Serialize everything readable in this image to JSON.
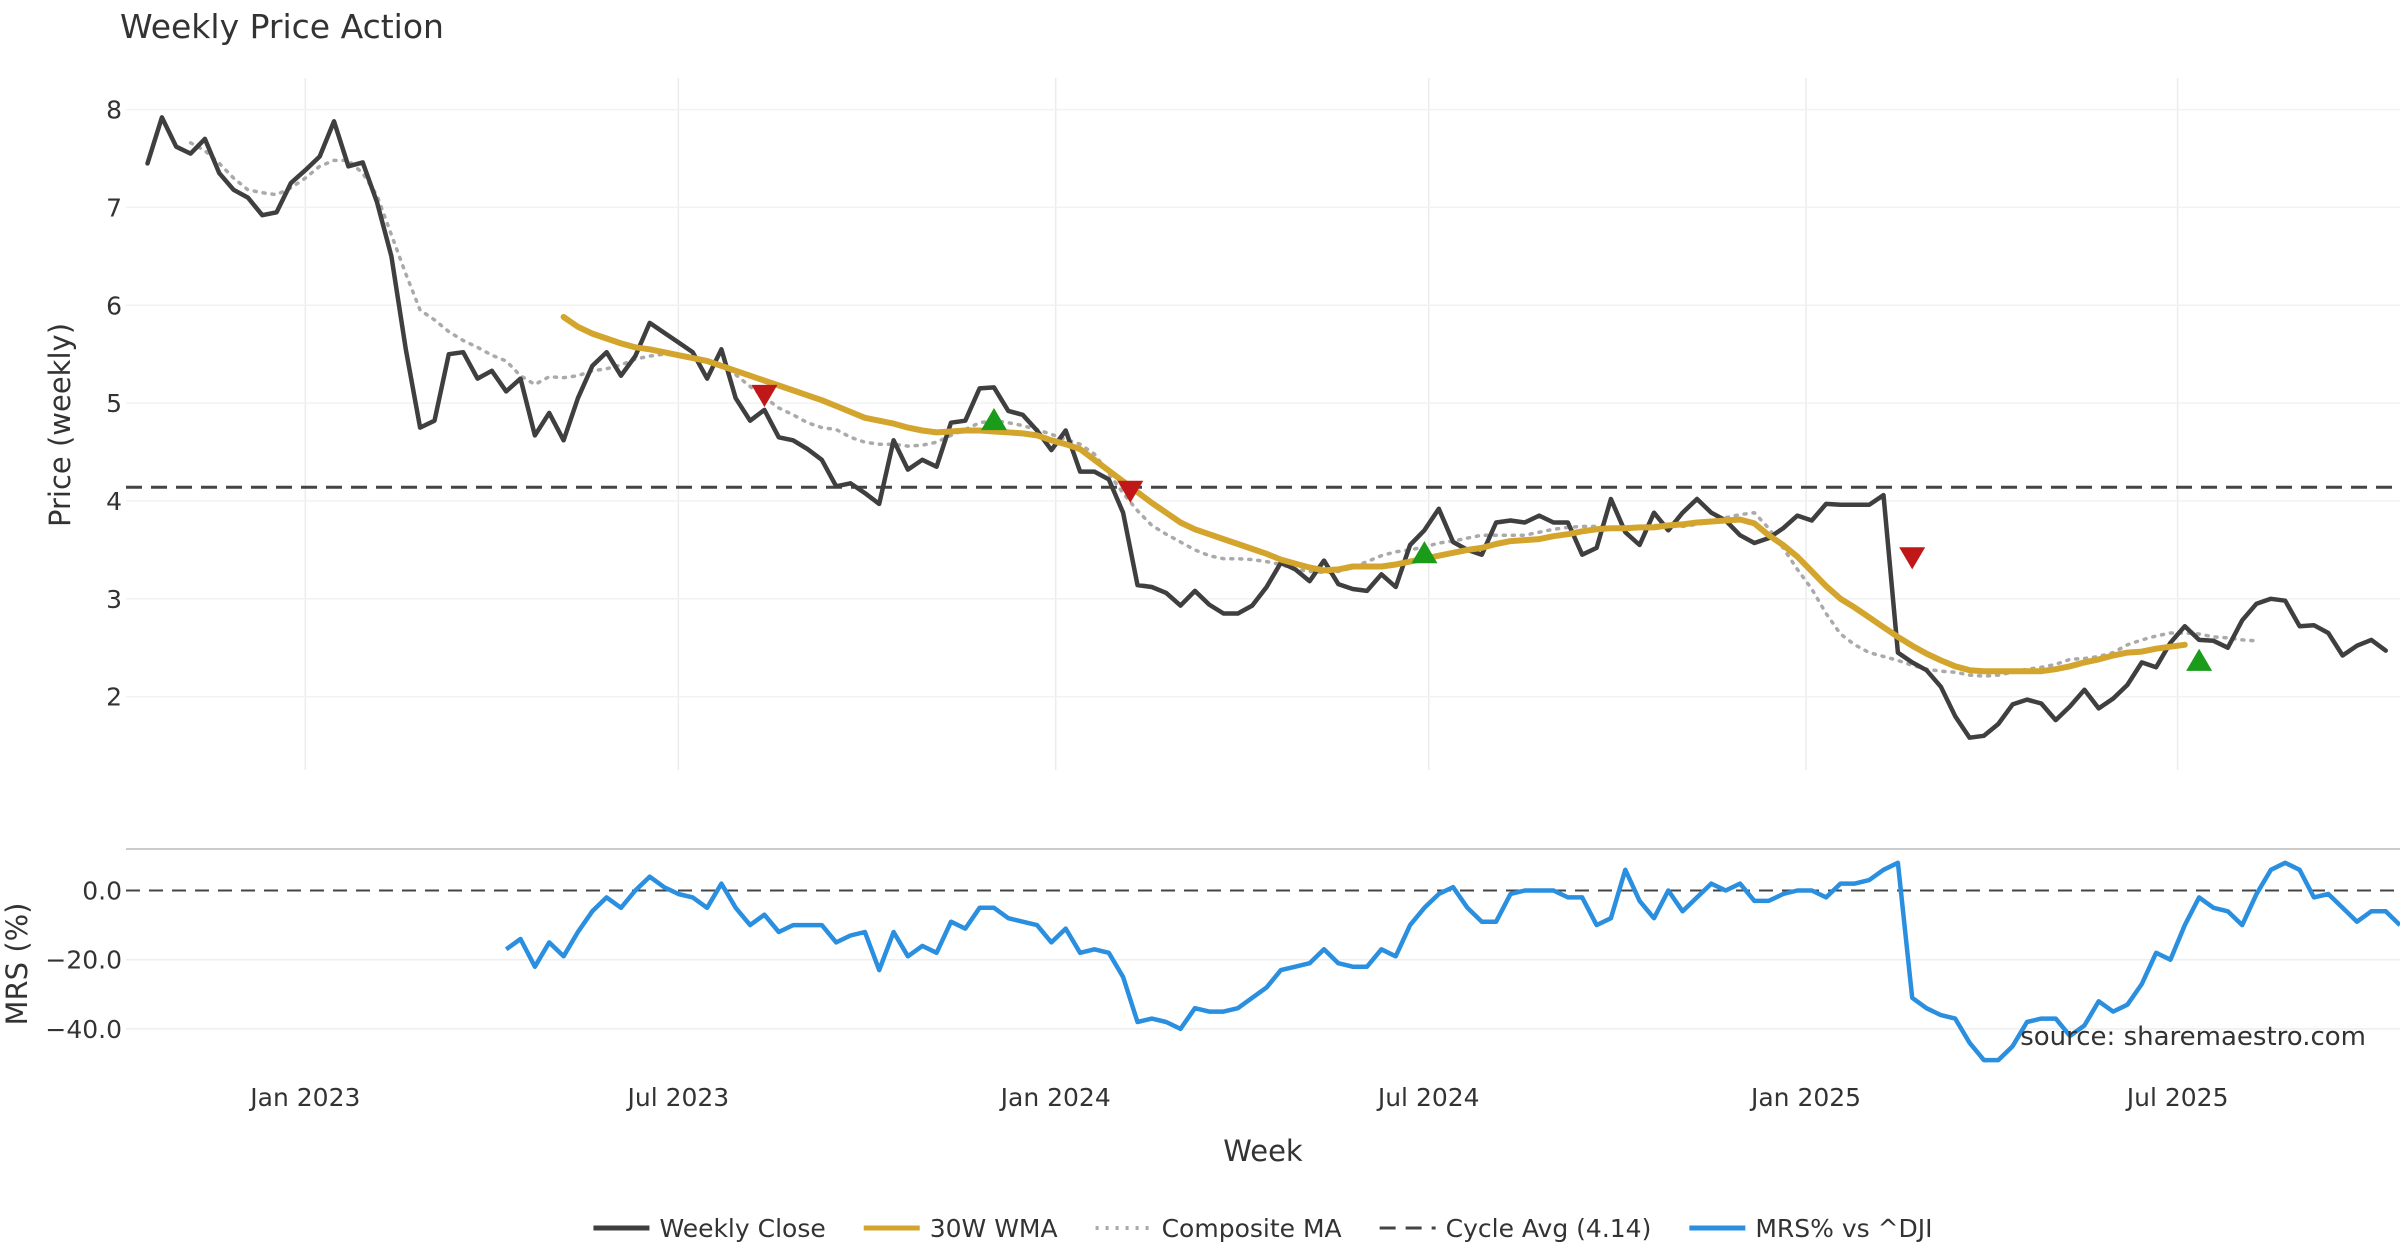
{
  "chart_data": [
    {
      "type": "line",
      "title": "Weekly Price Action",
      "xlabel": "Week",
      "ylabel": "Price (weekly)",
      "ylim": [
        1.25,
        8.2
      ],
      "yticks": [
        2,
        3,
        4,
        5,
        6,
        7,
        8
      ],
      "xticks": [
        {
          "label": "Jan 2023",
          "week": 11
        },
        {
          "label": "Jul 2023",
          "week": 37
        },
        {
          "label": "Jan 2024",
          "week": 63.3
        },
        {
          "label": "Jul 2024",
          "week": 89.3
        },
        {
          "label": "Jan 2025",
          "week": 115.6
        },
        {
          "label": "Jul 2025",
          "week": 141.5
        }
      ],
      "xlim": [
        -1.5,
        157
      ],
      "grid": true,
      "series": [
        {
          "name": "Weekly Close",
          "color": "#3f3f3f",
          "start_week": 0,
          "values": [
            7.45,
            7.92,
            7.62,
            7.55,
            7.7,
            7.35,
            7.18,
            7.1,
            6.92,
            6.95,
            7.25,
            7.38,
            7.52,
            7.88,
            7.42,
            7.46,
            7.05,
            6.5,
            5.55,
            4.75,
            4.82,
            5.5,
            5.52,
            5.25,
            5.33,
            5.12,
            5.25,
            4.67,
            4.9,
            4.62,
            5.05,
            5.38,
            5.52,
            5.28,
            5.48,
            5.82,
            5.72,
            5.62,
            5.52,
            5.25,
            5.55,
            5.05,
            4.82,
            4.93,
            4.65,
            4.62,
            4.53,
            4.42,
            4.15,
            4.18,
            4.08,
            3.97,
            4.62,
            4.32,
            4.42,
            4.35,
            4.8,
            4.82,
            5.15,
            5.16,
            4.92,
            4.88,
            4.72,
            4.52,
            4.72,
            4.3,
            4.3,
            4.22,
            3.88,
            3.14,
            3.12,
            3.06,
            2.93,
            3.08,
            2.94,
            2.85,
            2.85,
            2.93,
            3.12,
            3.37,
            3.3,
            3.18,
            3.39,
            3.15,
            3.1,
            3.08,
            3.25,
            3.12,
            3.55,
            3.7,
            3.92,
            3.58,
            3.5,
            3.45,
            3.78,
            3.8,
            3.78,
            3.85,
            3.78,
            3.78,
            3.45,
            3.52,
            4.02,
            3.68,
            3.55,
            3.88,
            3.7,
            3.88,
            4.02,
            3.88,
            3.8,
            3.65,
            3.57,
            3.62,
            3.72,
            3.85,
            3.8,
            3.97,
            3.96,
            3.96,
            3.96,
            4.06,
            2.45,
            2.35,
            2.27,
            2.1,
            1.8,
            1.58,
            1.6,
            1.72,
            1.92,
            1.97,
            1.93,
            1.76,
            1.9,
            2.07,
            1.88,
            1.98,
            2.12,
            2.35,
            2.3,
            2.55,
            2.72,
            2.58,
            2.57,
            2.5,
            2.78,
            2.95,
            3.0,
            2.98,
            2.72,
            2.73,
            2.65,
            2.42,
            2.52,
            2.58,
            2.47
          ]
        },
        {
          "name": "30W WMA",
          "color": "#d4a52c",
          "start_week": 29,
          "values": [
            5.88,
            5.78,
            5.71,
            5.66,
            5.61,
            5.57,
            5.55,
            5.52,
            5.49,
            5.46,
            5.43,
            5.38,
            5.33,
            5.28,
            5.23,
            5.18,
            5.13,
            5.08,
            5.03,
            4.97,
            4.91,
            4.85,
            4.82,
            4.79,
            4.75,
            4.72,
            4.7,
            4.71,
            4.72,
            4.72,
            4.71,
            4.7,
            4.69,
            4.67,
            4.62,
            4.58,
            4.53,
            4.42,
            4.31,
            4.2,
            4.09,
            3.98,
            3.88,
            3.78,
            3.71,
            3.66,
            3.61,
            3.56,
            3.51,
            3.46,
            3.4,
            3.36,
            3.32,
            3.29,
            3.3,
            3.33,
            3.33,
            3.33,
            3.35,
            3.38,
            3.41,
            3.44,
            3.47,
            3.5,
            3.52,
            3.56,
            3.59,
            3.6,
            3.61,
            3.64,
            3.66,
            3.69,
            3.71,
            3.72,
            3.72,
            3.73,
            3.73,
            3.75,
            3.76,
            3.78,
            3.79,
            3.8,
            3.81,
            3.77,
            3.65,
            3.55,
            3.43,
            3.28,
            3.13,
            3.0,
            2.91,
            2.81,
            2.71,
            2.61,
            2.52,
            2.44,
            2.37,
            2.31,
            2.27,
            2.26,
            2.26,
            2.26,
            2.26,
            2.26,
            2.28,
            2.31,
            2.35,
            2.38,
            2.42,
            2.45,
            2.46,
            2.49,
            2.51,
            2.53
          ]
        },
        {
          "name": "Composite MA",
          "color": "#aaaaaa",
          "start_week": 3,
          "values": [
            7.66,
            7.58,
            7.45,
            7.3,
            7.18,
            7.15,
            7.13,
            7.2,
            7.3,
            7.42,
            7.48,
            7.48,
            7.35,
            7.12,
            6.72,
            6.32,
            5.95,
            5.85,
            5.73,
            5.64,
            5.57,
            5.49,
            5.43,
            5.28,
            5.19,
            5.27,
            5.26,
            5.28,
            5.33,
            5.35,
            5.39,
            5.45,
            5.48,
            5.5,
            5.49,
            5.47,
            5.44,
            5.38,
            5.29,
            5.17,
            5.06,
            4.95,
            4.88,
            4.8,
            4.75,
            4.73,
            4.65,
            4.6,
            4.58,
            4.58,
            4.56,
            4.57,
            4.6,
            4.67,
            4.73,
            4.8,
            4.82,
            4.8,
            4.77,
            4.73,
            4.68,
            4.63,
            4.58,
            4.48,
            4.28,
            4.08,
            3.9,
            3.75,
            3.66,
            3.58,
            3.5,
            3.44,
            3.41,
            3.41,
            3.4,
            3.38,
            3.35,
            3.3,
            3.28,
            3.27,
            3.28,
            3.32,
            3.38,
            3.44,
            3.48,
            3.5,
            3.53,
            3.57,
            3.59,
            3.62,
            3.65,
            3.65,
            3.65,
            3.65,
            3.68,
            3.71,
            3.73,
            3.74,
            3.74,
            3.73,
            3.73,
            3.74,
            3.75,
            3.74,
            3.74,
            3.76,
            3.79,
            3.83,
            3.86,
            3.88,
            3.72,
            3.52,
            3.3,
            3.1,
            2.85,
            2.64,
            2.53,
            2.45,
            2.41,
            2.37,
            2.32,
            2.28,
            2.26,
            2.25,
            2.22,
            2.21,
            2.22,
            2.25,
            2.28,
            2.3,
            2.33,
            2.38,
            2.39,
            2.41,
            2.45,
            2.53,
            2.58,
            2.62,
            2.65,
            2.65,
            2.64,
            2.61,
            2.6,
            2.58,
            2.57
          ]
        }
      ],
      "reference_line": {
        "name": "Cycle Avg (4.14)",
        "value": 4.14,
        "color": "#444444"
      },
      "markers": [
        {
          "kind": "sell",
          "week": 43,
          "value": 5.08,
          "color": "#c01818"
        },
        {
          "kind": "buy",
          "week": 59,
          "value": 4.83,
          "color": "#1a9c1a"
        },
        {
          "kind": "sell",
          "week": 68.5,
          "value": 4.1,
          "color": "#c01818"
        },
        {
          "kind": "buy",
          "week": 89,
          "value": 3.47,
          "color": "#1a9c1a"
        },
        {
          "kind": "sell",
          "week": 123,
          "value": 3.42,
          "color": "#c01818"
        },
        {
          "kind": "buy",
          "week": 143,
          "value": 2.37,
          "color": "#1a9c1a"
        }
      ]
    },
    {
      "type": "line",
      "title": "",
      "xlabel": "",
      "ylabel": "MRS (%)",
      "ylim": [
        -51,
        12
      ],
      "yticks": [
        {
          "label": "0.0",
          "value": 0
        },
        {
          "label": "−20.0",
          "value": -20
        },
        {
          "label": "−40.0",
          "value": -40
        }
      ],
      "zero_line": 0,
      "series": [
        {
          "name": "MRS% vs ^DJI",
          "color": "#2b8fe0",
          "start_week": 25,
          "values": [
            -17,
            -14,
            -22,
            -15,
            -19,
            -12,
            -6,
            -2,
            -5,
            0,
            4,
            1,
            -1,
            -2,
            -5,
            2,
            -5,
            -10,
            -7,
            -12,
            -10,
            -10,
            -10,
            -15,
            -13,
            -12,
            -23,
            -12,
            -19,
            -16,
            -18,
            -9,
            -11,
            -5,
            -5,
            -8,
            -9,
            -10,
            -15,
            -11,
            -18,
            -17,
            -18,
            -25,
            -38,
            -37,
            -38,
            -40,
            -34,
            -35,
            -35,
            -34,
            -31,
            -28,
            -23,
            -22,
            -21,
            -17,
            -21,
            -22,
            -22,
            -17,
            -19,
            -10,
            -5,
            -1,
            1,
            -5,
            -9,
            -9,
            -1,
            0,
            0,
            0,
            -2,
            -2,
            -10,
            -8,
            6,
            -3,
            -8,
            0,
            -6,
            -2,
            2,
            0,
            2,
            -3,
            -3,
            -1,
            0,
            0,
            -2,
            2,
            2,
            3,
            6,
            8,
            -31,
            -34,
            -36,
            -37,
            -44,
            -49,
            -49,
            -45,
            -38,
            -37,
            -37,
            -42,
            -39,
            -32,
            -35,
            -33,
            -27,
            -18,
            -20,
            -10,
            -2,
            -5,
            -6,
            -10,
            -1,
            6,
            8,
            6,
            -2,
            -1,
            -5,
            -9,
            -6,
            -6,
            -10
          ]
        }
      ],
      "annotations": [
        "source: sharemaestro.com"
      ]
    }
  ],
  "legend": [
    {
      "name": "Weekly Close",
      "color": "#3f3f3f",
      "style": "solid"
    },
    {
      "name": "30W WMA",
      "color": "#d4a52c",
      "style": "solid"
    },
    {
      "name": "Composite MA",
      "color": "#aaaaaa",
      "style": "dotted"
    },
    {
      "name": "Cycle Avg (4.14)",
      "color": "#444444",
      "style": "dashed"
    },
    {
      "name": "MRS% vs ^DJI",
      "color": "#2b8fe0",
      "style": "solid"
    }
  ]
}
